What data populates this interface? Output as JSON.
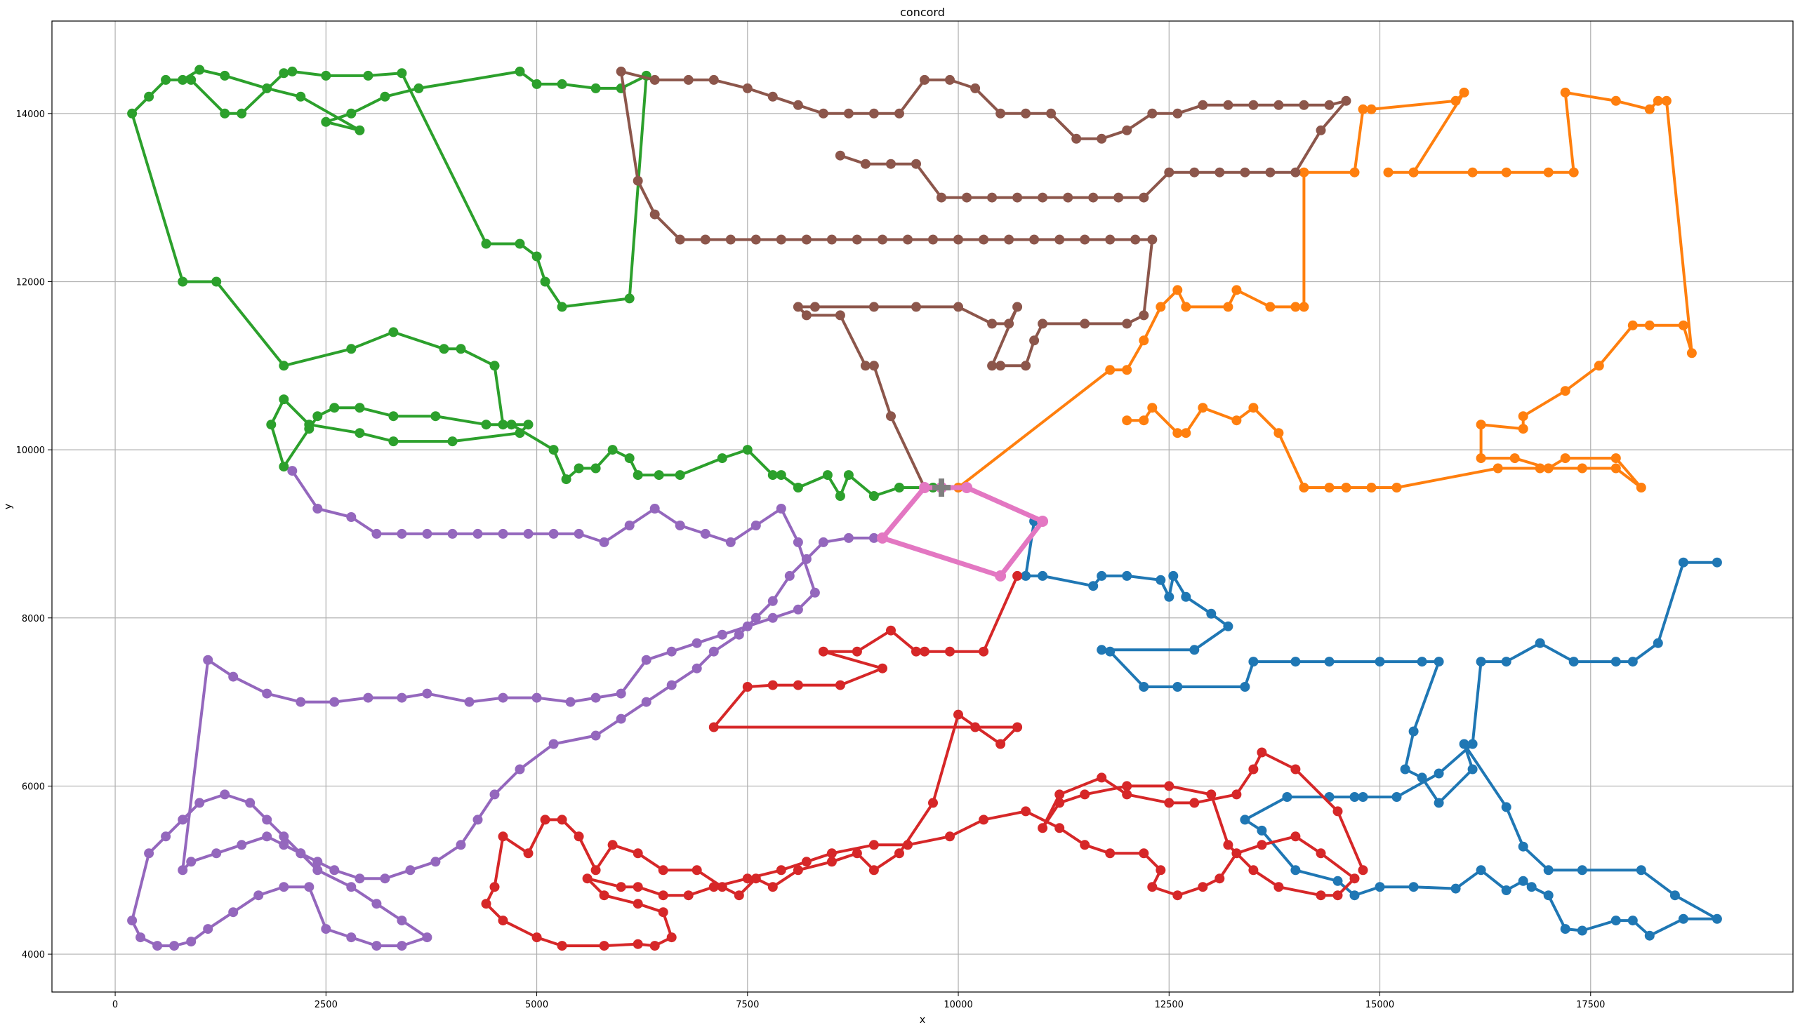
{
  "chart_data": {
    "type": "line",
    "title": "concord",
    "xlabel": "x",
    "ylabel": "y",
    "xlim": [
      -750,
      19900
    ],
    "ylim": [
      3550,
      15100
    ],
    "grid": true,
    "legend": "none",
    "xticks": [
      0,
      2500,
      5000,
      7500,
      10000,
      12500,
      15000,
      17500
    ],
    "yticks": [
      4000,
      6000,
      8000,
      10000,
      12000,
      14000
    ],
    "depot": [
      9800,
      9550
    ],
    "series": [
      {
        "color": "#1f77b4",
        "width": 4,
        "x": [
          10900,
          10800,
          11000,
          11600,
          11700,
          12000,
          12400,
          12500,
          12550,
          12700,
          13000,
          13200,
          12800,
          11700,
          11800,
          12200,
          12600,
          13400,
          13500,
          14000,
          14400,
          15000,
          15500,
          15700,
          15400,
          15300,
          15500,
          15700,
          16100,
          16000,
          16500,
          16700,
          17000,
          17400,
          18100,
          18500,
          19000,
          18600,
          18200,
          18000,
          17800,
          17400,
          17200,
          17000,
          16800,
          16700,
          16500,
          16200,
          15900,
          15400,
          15000,
          14700,
          14500,
          14000,
          13600,
          13400,
          13900,
          14400,
          14700,
          14800,
          15200,
          15700,
          16100,
          16200,
          16500,
          16900,
          17300,
          17800,
          18000,
          18300,
          18600,
          19000
        ],
        "y": [
          9150,
          8500,
          8500,
          8380,
          8500,
          8500,
          8450,
          8250,
          8500,
          8250,
          8050,
          7900,
          7620,
          7620,
          7600,
          7180,
          7180,
          7180,
          7480,
          7480,
          7480,
          7480,
          7480,
          7480,
          6650,
          6200,
          6100,
          5800,
          6200,
          6500,
          5750,
          5280,
          5000,
          5000,
          5000,
          4700,
          4420,
          4420,
          4220,
          4400,
          4400,
          4280,
          4300,
          4700,
          4800,
          4870,
          4760,
          5000,
          4780,
          4800,
          4800,
          4700,
          4870,
          5000,
          5470,
          5600,
          5870,
          5870,
          5870,
          5870,
          5870,
          6150,
          6500,
          7480,
          7480,
          7700,
          7480,
          7480,
          7480,
          7700,
          8660,
          8660
        ]
      },
      {
        "color": "#ff7f0e",
        "width": 4,
        "x": [
          10000,
          11800,
          12000,
          12200,
          12400,
          12600,
          12700,
          13200,
          13300,
          13700,
          14000,
          14100,
          14100,
          14700,
          14800,
          14900,
          15900,
          16000,
          15400,
          15100,
          15400,
          16100,
          16500,
          17000,
          17300,
          17200,
          17800,
          18200,
          18300,
          18400,
          18700,
          18600,
          18200,
          18000,
          17600,
          17200,
          16700,
          16700,
          16200,
          16200,
          16600,
          17000,
          17200,
          17800,
          18100,
          17800,
          17400,
          16900,
          16400,
          15200,
          14900,
          14600,
          14400,
          14100,
          13800,
          13500,
          13300,
          12900,
          12700,
          12600,
          12300,
          12200,
          12000
        ],
        "y": [
          9550,
          10950,
          10950,
          11300,
          11700,
          11900,
          11700,
          11700,
          11900,
          11700,
          11700,
          11700,
          13300,
          13300,
          14050,
          14050,
          14150,
          14250,
          13300,
          13300,
          13300,
          13300,
          13300,
          13300,
          13300,
          14250,
          14150,
          14050,
          14150,
          14150,
          11150,
          11480,
          11480,
          11480,
          11000,
          10700,
          10400,
          10250,
          10300,
          9900,
          9900,
          9780,
          9900,
          9900,
          9550,
          9780,
          9780,
          9780,
          9780,
          9550,
          9550,
          9550,
          9550,
          9550,
          10200,
          10500,
          10350,
          10500,
          10200,
          10200,
          10500,
          10350,
          10350
        ]
      },
      {
        "color": "#2ca02c",
        "width": 4,
        "x": [
          9700,
          9300,
          9000,
          8700,
          8600,
          8450,
          8100,
          7900,
          7800,
          7500,
          7200,
          6700,
          6450,
          6200,
          6100,
          5900,
          5700,
          5500,
          5350,
          5200,
          4700,
          4400,
          3800,
          3300,
          2900,
          2600,
          2400,
          2300,
          2000,
          1850,
          2000,
          2300,
          2900,
          3300,
          4000,
          4800,
          4900,
          4600,
          4500,
          4100,
          3900,
          3300,
          2800,
          2000,
          1200,
          800,
          200,
          400,
          600,
          800,
          1000,
          1300,
          1800,
          2200,
          2900,
          2500,
          2800,
          3200,
          3600,
          4800,
          5000,
          5300,
          5700,
          6000,
          6300,
          6100,
          5300,
          5100,
          5000,
          4800,
          4400,
          3400,
          3000,
          2500,
          2100,
          2000,
          1500,
          1300,
          900
        ],
        "y": [
          9550,
          9550,
          9450,
          9700,
          9450,
          9700,
          9550,
          9700,
          9700,
          10000,
          9900,
          9700,
          9700,
          9700,
          9900,
          10000,
          9780,
          9780,
          9650,
          10000,
          10300,
          10300,
          10400,
          10400,
          10500,
          10500,
          10400,
          10250,
          9800,
          10300,
          10600,
          10300,
          10200,
          10100,
          10100,
          10200,
          10300,
          10300,
          11000,
          11200,
          11200,
          11400,
          11200,
          11000,
          12000,
          12000,
          14000,
          14200,
          14400,
          14400,
          14520,
          14450,
          14300,
          14200,
          13800,
          13900,
          14000,
          14200,
          14300,
          14500,
          14350,
          14350,
          14300,
          14300,
          14450,
          11800,
          11700,
          12000,
          12300,
          12450,
          12450,
          14480,
          14450,
          14450,
          14500,
          14480,
          14000,
          14000,
          14400
        ]
      },
      {
        "color": "#d62728",
        "width": 4,
        "x": [
          10700,
          10300,
          9900,
          9600,
          9500,
          9200,
          8800,
          8400,
          9100,
          8600,
          8100,
          7800,
          7500,
          7100,
          10200,
          10700,
          10500,
          10000,
          9700,
          9300,
          9000,
          8800,
          8500,
          8100,
          7800,
          7600,
          7400,
          7200,
          6900,
          6500,
          6200,
          5900,
          5700,
          5500,
          5300,
          5100,
          4900,
          4600,
          4500,
          4400,
          4600,
          5000,
          5300,
          5800,
          6200,
          6400,
          6600,
          6500,
          6200,
          5800,
          5600,
          6000,
          6200,
          6500,
          6800,
          7100,
          7500,
          7900,
          8200,
          8500,
          9000,
          9400,
          9900,
          10300,
          10800,
          11200,
          11500,
          11800,
          12200,
          12400,
          12300,
          12600,
          12900,
          13100,
          13300,
          13600,
          14000,
          14300,
          14700,
          14500,
          14300,
          13800,
          13500,
          13200,
          13000,
          12500,
          12000,
          11500,
          11200,
          11000,
          11200,
          11700,
          12000,
          12500,
          12800,
          13300,
          13500,
          13600,
          14000,
          14500,
          14800
        ],
        "y": [
          8500,
          7600,
          7600,
          7600,
          7600,
          7850,
          7600,
          7600,
          7400,
          7200,
          7200,
          7200,
          7180,
          6700,
          6700,
          6700,
          6500,
          6850,
          5800,
          5200,
          5000,
          5200,
          5100,
          5000,
          4800,
          4900,
          4700,
          4800,
          5000,
          5000,
          5200,
          5300,
          5000,
          5400,
          5600,
          5600,
          5200,
          5400,
          4800,
          4600,
          4400,
          4200,
          4100,
          4100,
          4120,
          4100,
          4200,
          4500,
          4600,
          4700,
          4900,
          4800,
          4800,
          4700,
          4700,
          4800,
          4900,
          5000,
          5100,
          5200,
          5300,
          5300,
          5400,
          5600,
          5700,
          5500,
          5300,
          5200,
          5200,
          5000,
          4800,
          4700,
          4800,
          4900,
          5200,
          5300,
          5400,
          5200,
          4900,
          4700,
          4700,
          4800,
          5000,
          5300,
          5900,
          6000,
          6000,
          5900,
          5800,
          5500,
          5900,
          6100,
          5900,
          5800,
          5800,
          5900,
          6200,
          6400,
          6200,
          5700,
          5000
        ]
      },
      {
        "color": "#9467bd",
        "width": 4,
        "x": [
          9000,
          8700,
          8400,
          8200,
          8000,
          7800,
          7600,
          7400,
          7100,
          6900,
          6600,
          6300,
          6000,
          5700,
          5200,
          4800,
          4500,
          4300,
          4100,
          3800,
          3500,
          3200,
          2900,
          2600,
          2400,
          2200,
          2000,
          1800,
          1600,
          1300,
          1000,
          800,
          600,
          400,
          200,
          300,
          500,
          700,
          900,
          1100,
          1400,
          1700,
          2000,
          2300,
          2500,
          2800,
          3100,
          3400,
          3700,
          3400,
          3100,
          2800,
          2400,
          2200,
          2000,
          1800,
          1500,
          1200,
          900,
          800,
          1100,
          1400,
          1800,
          2200,
          2600,
          3000,
          3400,
          3700,
          4200,
          4600,
          5000,
          5400,
          5700,
          6000,
          6300,
          6600,
          6900,
          7200,
          7500,
          7800,
          8100,
          8300,
          8100,
          7900,
          7600,
          7300,
          7000,
          6700,
          6400,
          6100,
          5800,
          5500,
          5200,
          4900,
          4600,
          4300,
          4000,
          3700,
          3400,
          3100,
          2800,
          2400,
          2100
        ],
        "y": [
          8950,
          8950,
          8900,
          8700,
          8500,
          8200,
          8000,
          7800,
          7600,
          7400,
          7200,
          7000,
          6800,
          6600,
          6500,
          6200,
          5900,
          5600,
          5300,
          5100,
          5000,
          4900,
          4900,
          5000,
          5100,
          5200,
          5400,
          5600,
          5800,
          5900,
          5800,
          5600,
          5400,
          5200,
          4400,
          4200,
          4100,
          4100,
          4150,
          4300,
          4500,
          4700,
          4800,
          4800,
          4300,
          4200,
          4100,
          4100,
          4200,
          4400,
          4600,
          4800,
          5000,
          5200,
          5300,
          5400,
          5300,
          5200,
          5100,
          5000,
          7500,
          7300,
          7100,
          7000,
          7000,
          7050,
          7050,
          7100,
          7000,
          7050,
          7050,
          7000,
          7050,
          7100,
          7500,
          7600,
          7700,
          7800,
          7900,
          8000,
          8100,
          8300,
          8900,
          9300,
          9100,
          8900,
          9000,
          9100,
          9300,
          9100,
          8900,
          9000,
          9000,
          9000,
          9000,
          9000,
          9000,
          9000,
          9000,
          9000,
          9200,
          9300,
          9750
        ]
      },
      {
        "color": "#8c564b",
        "width": 4,
        "x": [
          9600,
          9200,
          9000,
          8900,
          8600,
          8200,
          8100,
          8300,
          9000,
          9500,
          10000,
          10400,
          10600,
          10700,
          10400,
          10500,
          10800,
          10900,
          11000,
          11500,
          12000,
          12200,
          12300,
          12100,
          11800,
          11500,
          11200,
          10900,
          10600,
          10300,
          10000,
          9700,
          9400,
          9100,
          8800,
          8500,
          8200,
          7900,
          7600,
          7300,
          7000,
          6700,
          6400,
          6200,
          6000,
          6400,
          6800,
          7100,
          7500,
          7800,
          8100,
          8400,
          8700,
          9000,
          9300,
          9600,
          9900,
          10200,
          10500,
          10800,
          11100,
          11400,
          11700,
          12000,
          12300,
          12600,
          12900,
          13200,
          13500,
          13800,
          14100,
          14400,
          14600,
          14300,
          14000,
          13700,
          13400,
          13100,
          12800,
          12500,
          12200,
          11900,
          11600,
          11300,
          11000,
          10700,
          10400,
          10100,
          9800,
          9500,
          9200,
          8900,
          8600
        ],
        "y": [
          9550,
          10400,
          11000,
          11000,
          11600,
          11600,
          11700,
          11700,
          11700,
          11700,
          11700,
          11500,
          11500,
          11700,
          11000,
          11000,
          11000,
          11300,
          11500,
          11500,
          11500,
          11600,
          12500,
          12500,
          12500,
          12500,
          12500,
          12500,
          12500,
          12500,
          12500,
          12500,
          12500,
          12500,
          12500,
          12500,
          12500,
          12500,
          12500,
          12500,
          12500,
          12500,
          12800,
          13200,
          14500,
          14400,
          14400,
          14400,
          14300,
          14200,
          14100,
          14000,
          14000,
          14000,
          14000,
          14400,
          14400,
          14300,
          14000,
          14000,
          14000,
          13700,
          13700,
          13800,
          14000,
          14000,
          14100,
          14100,
          14100,
          14100,
          14100,
          14100,
          14150,
          13800,
          13300,
          13300,
          13300,
          13300,
          13300,
          13300,
          13000,
          13000,
          13000,
          13000,
          13000,
          13000,
          13000,
          13000,
          13000,
          13400,
          13400,
          13400,
          13500
        ]
      },
      {
        "color": "#e377c2",
        "width": 7,
        "x": [
          9800,
          9600,
          9100,
          10500,
          11000,
          10100,
          9800
        ],
        "y": [
          9550,
          9550,
          8950,
          8500,
          9150,
          9550,
          9550
        ]
      }
    ]
  }
}
